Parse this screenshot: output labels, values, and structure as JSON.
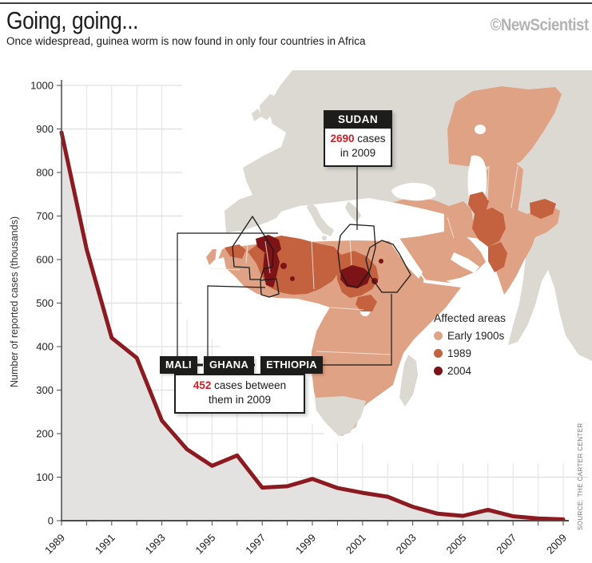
{
  "header": {
    "title": "Going, going...",
    "brand": "©NewScientist",
    "subtitle": "Once widespread, guinea worm is now found in only four countries in Africa"
  },
  "chart_data": {
    "type": "area",
    "x": [
      1989,
      1990,
      1991,
      1992,
      1993,
      1994,
      1995,
      1996,
      1997,
      1998,
      1999,
      2000,
      2001,
      2002,
      2003,
      2004,
      2005,
      2006,
      2007,
      2008,
      2009
    ],
    "values": [
      892,
      624,
      420,
      374,
      230,
      164,
      126,
      150,
      76,
      79,
      96,
      75,
      64,
      55,
      32,
      16,
      11,
      25,
      10,
      5,
      3
    ],
    "title": "",
    "xlabel": "",
    "ylabel": "Number of reported cases (thousands)",
    "ylim": [
      0,
      1000
    ],
    "ytick_step": 100,
    "xtick_label_every": 2,
    "grid": true,
    "line_color": "#8b1b20",
    "area_color": "#e3e2e0"
  },
  "map": {
    "legend": {
      "title": "Affected areas",
      "items": [
        {
          "label": "Early 1900s",
          "color": "#dfa587"
        },
        {
          "label": "1989",
          "color": "#c4613f"
        },
        {
          "label": "2004",
          "color": "#7c1317"
        }
      ]
    },
    "callouts": {
      "sudan": {
        "label": "SUDAN",
        "value": "2690",
        "text_after": " cases",
        "line2": "in 2009"
      },
      "west": {
        "labels": [
          "MALI",
          "GHANA",
          "ETHIOPIA"
        ],
        "value": "452",
        "text_after": " cases between",
        "line2": "them in 2009"
      }
    },
    "region_colors": {
      "unaffected_land": "#dcd8d2",
      "early_1900s": "#e0a284",
      "y1989": "#c4613f",
      "y2004": "#7c1317",
      "ocean": "#ffffff"
    }
  },
  "source": "SOURCE: THE CARTER CENTER"
}
